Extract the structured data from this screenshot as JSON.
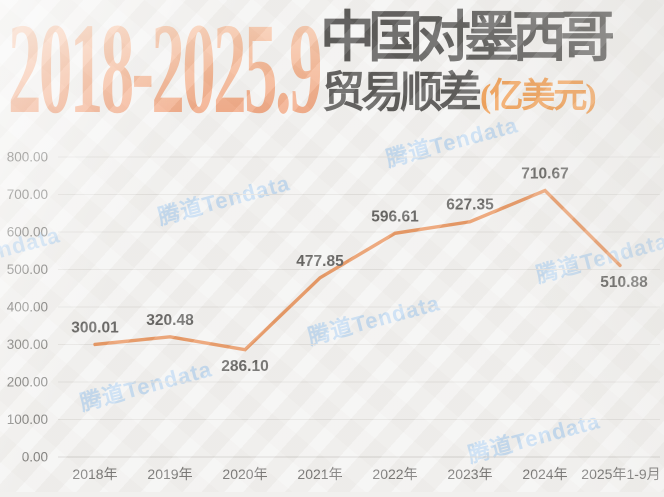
{
  "title": {
    "range": "2018-2025.9",
    "main": "中国对墨西哥",
    "sub": "贸易顺差",
    "unit": "(亿美元)"
  },
  "watermark": {
    "text": "腾道Tendata"
  },
  "colors": {
    "line": "#e2742d",
    "title_gradient_top": "#f7c4a4",
    "title_gradient_bottom": "#ec8150",
    "unit_orange": "#ef7d16",
    "watermark_blue": "#a6cbee",
    "grid": "#dbd9d6",
    "baseline": "#c6c4c0",
    "axis_text": "#4d4c49",
    "data_label": "#2b2a28",
    "background": "#f1f0ee"
  },
  "chart_data": {
    "type": "line",
    "title": "2018-2025.9 中国对墨西哥贸易顺差",
    "unit_label": "亿美元",
    "categories": [
      "2018年",
      "2019年",
      "2020年",
      "2021年",
      "2022年",
      "2023年",
      "2024年",
      "2025年1-9月"
    ],
    "values": [
      300.01,
      320.48,
      286.1,
      477.85,
      596.61,
      627.35,
      710.67,
      510.88
    ],
    "value_labels": [
      "300.01",
      "320.48",
      "286.10",
      "477.85",
      "596.61",
      "627.35",
      "710.67",
      "510.88"
    ],
    "ylim": [
      0,
      800
    ],
    "y_tick_step": 100,
    "y_tick_labels": [
      "800.00",
      "700.00",
      "600.00",
      "500.00",
      "400.00",
      "300.00",
      "200.00",
      "100.00",
      "0.00"
    ],
    "grid": true,
    "legend": "none",
    "line_color": "#e2742d"
  }
}
